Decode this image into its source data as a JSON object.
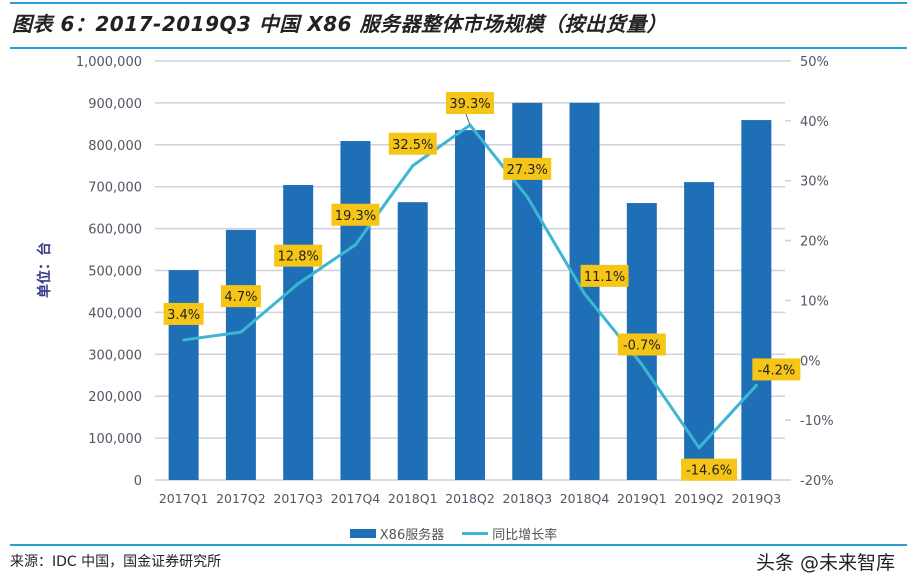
{
  "header": {
    "title": "图表 6：2017-2019Q3 中国 X86 服务器整体市场规模（按出货量）"
  },
  "footer": {
    "source": "来源：IDC 中国，国金证券研究所",
    "watermark": "头条 @未来智库"
  },
  "colors": {
    "bar": "#1f6fb6",
    "line": "#3cb6d2",
    "label_bg": "#f5c518",
    "rule": "#2a9fd6",
    "grid": "#d0d0dc",
    "axis_text": "#555566"
  },
  "chart_data": {
    "type": "bar",
    "title": "2017-2019Q3 中国 X86 服务器整体市场规模（按出货量）",
    "xlabel": "",
    "ylabel": "单位：台",
    "categories": [
      "2017Q1",
      "2017Q2",
      "2017Q3",
      "2017Q4",
      "2018Q1",
      "2018Q2",
      "2018Q3",
      "2018Q4",
      "2019Q1",
      "2019Q2",
      "2019Q3"
    ],
    "series": [
      {
        "name": "X86服务器",
        "type": "bar",
        "axis": "left",
        "values": [
          501000,
          597000,
          704000,
          809000,
          663000,
          835000,
          900000,
          900000,
          661000,
          711000,
          859000
        ]
      },
      {
        "name": "同比增长率",
        "type": "line",
        "axis": "right",
        "values": [
          3.4,
          4.7,
          12.8,
          19.3,
          32.5,
          39.3,
          27.3,
          11.1,
          -0.7,
          -14.6,
          -4.2
        ],
        "labels": [
          "3.4%",
          "4.7%",
          "12.8%",
          "19.3%",
          "32.5%",
          "39.3%",
          "27.3%",
          "11.1%",
          "-0.7%",
          "-14.6%",
          "-4.2%"
        ]
      }
    ],
    "ylim": [
      0,
      1000000
    ],
    "y2lim": [
      -20,
      50
    ],
    "yticks": [
      "0",
      "100,000",
      "200,000",
      "300,000",
      "400,000",
      "500,000",
      "600,000",
      "700,000",
      "800,000",
      "900,000",
      "1,000,000"
    ],
    "ytick_values": [
      0,
      100000,
      200000,
      300000,
      400000,
      500000,
      600000,
      700000,
      800000,
      900000,
      1000000
    ],
    "y2ticks": [
      "-20%",
      "-10%",
      "0%",
      "10%",
      "20%",
      "30%",
      "40%",
      "50%"
    ],
    "y2tick_values": [
      -20,
      -10,
      0,
      10,
      20,
      30,
      40,
      50
    ],
    "grid": true,
    "legend": [
      "X86服务器",
      "同比增长率"
    ],
    "legend_position": "bottom"
  }
}
